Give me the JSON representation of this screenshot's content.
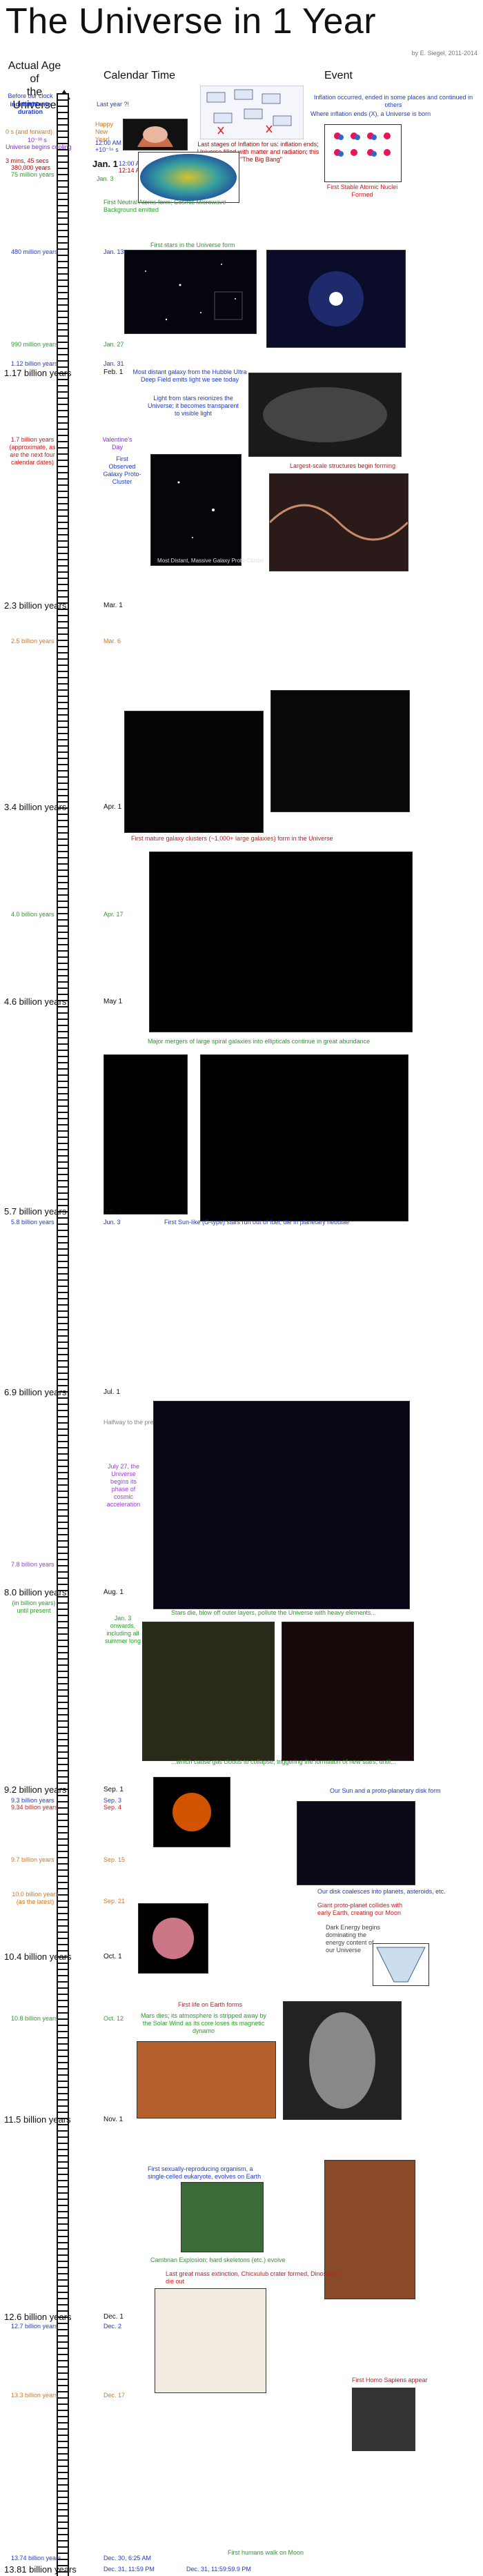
{
  "title": "The Universe in 1 Year",
  "credit": "by E. Siegel, 2011-2014",
  "headers": {
    "age": "Actual Age of\nthe Universe",
    "calendar": "Calendar Time",
    "event": "Event"
  },
  "intro": {
    "before": "Before our clock starts:",
    "indeterminate": "indeterminate",
    "duration": "duration",
    "last_year": "Last year ?!",
    "zero": "0 s (and forward)",
    "tenpow": "10⁻³³ s",
    "cooling": "Universe begins cooling",
    "three_min": "3 mins, 45 secs",
    "three_min_yr": "380,000 years",
    "yr75": "75 million years",
    "happy": "Happy New Year!",
    "twelve": "12:00 AM",
    "twelve2": "+10⁻¹⁶ s",
    "jan1": "Jan. 1",
    "jan1b": "12:00 AM + 16 ns",
    "jan1c": "12:14 AM",
    "jan3": "Jan. 3",
    "inflation_ends": "Inflation occurred, ended in some places and continued in others",
    "where_inflation": "Where inflation ends (X), a Universe is born",
    "last_stages": "Last stages of Inflation for us: inflation ends; Universe filled with matter and radiation; this is \"The Big Bang\"",
    "first_stable": "First Stable Atomic Nuclei Formed",
    "neutral_atoms": "First Neutral Atoms form; Cosmic Microwave Background emitted"
  },
  "rows": [
    {
      "age": "480 million years",
      "cal": "Jan. 13",
      "event": "First stars in the Universe form"
    },
    {
      "age": "990 million years",
      "cal": "Jan. 27"
    },
    {
      "age": "1.12 billion years",
      "cal": "Jan. 31"
    },
    {
      "age": "1.17 billion years",
      "cal": "Feb. 1",
      "event": "Most distant galaxy from the Hubble Ultra Deep Field emits light we see today"
    },
    {
      "event2": "Light from stars reionizes the Universe; it becomes transparent to visible light"
    },
    {
      "age": "1.7 billion years (approximate, as are the next four calendar dates)",
      "cal": "Valentine's Day",
      "event": "First Observed Galaxy Proto-Cluster"
    },
    {
      "event": "Largest-scale structures begin forming"
    },
    {
      "age": "2.3 billion years",
      "cal": "Mar. 1"
    },
    {
      "age": "2.5 billion years",
      "cal": "Mar. 6"
    },
    {
      "age": "3.4 billion years",
      "cal": "Apr. 1"
    },
    {
      "event": "First mature galaxy clusters (~1,000+ large galaxies) form in the Universe"
    },
    {
      "age": "4.0 billion years",
      "cal": "Apr. 17"
    },
    {
      "age": "4.6 billion years",
      "cal": "May 1"
    },
    {
      "event": "Major mergers of large spiral galaxies into ellipticals continue in great abundance"
    },
    {
      "age": "5.7 billion years",
      "cal": "Jun. 1"
    },
    {
      "age": "5.8 billion years",
      "cal": "Jun. 3",
      "event": "First Sun-like (G-type) stars run out of fuel; die in planetary nebulae"
    },
    {
      "age": "6.9 billion years",
      "cal": "Jul. 1",
      "note": "Halfway to the present day"
    },
    {
      "age": "7.8 billion years",
      "cal": "July 27, the Universe begins its phase of cosmic acceleration"
    },
    {
      "age": "8.0 billion years",
      "cal": "Aug. 1",
      "event": "Stars die, blow off outer layers, pollute the Universe with heavy elements..."
    },
    {
      "age": "(in billion years) until present",
      "cal": "Jan. 3 onwards, including all summer long"
    },
    {
      "event": "...which cause gas clouds to collapse, triggering the formation of new stars, until..."
    },
    {
      "age": "9.2 billion years",
      "cal": "Sep. 1",
      "event": "Our Sun and a proto-planetary disk form"
    },
    {
      "age": "9.3 billion years",
      "cal": "Sep. 3"
    },
    {
      "age": "9.34 billion years",
      "cal": "Sep. 4"
    },
    {
      "age": "9.7 billion years",
      "cal": "Sep. 15"
    },
    {
      "event": "Our disk coalesces into planets, asteroids, etc."
    },
    {
      "age": "10.0 billion years (as the latest)",
      "cal": "Sep. 21",
      "event": "Giant proto-planet collides with early Earth, creating our Moon"
    },
    {
      "event": "Dark Energy begins dominating the energy content of our Universe"
    },
    {
      "age": "10.4 billion years",
      "cal": "Oct. 1"
    },
    {
      "event": "First life on Earth forms"
    },
    {
      "age": "10.8 billion years",
      "cal": "Oct. 12",
      "event": "Mars dies; its atmosphere is stripped away by the Solar Wind as its core loses its magnetic dynamo"
    },
    {
      "age": "11.5 billion years",
      "cal": "Nov. 1"
    },
    {
      "event": "First sexually-reproducing organism, a single-celled eukaryote, evolves on Earth"
    },
    {
      "event": "Cambrian Explosion; hard skeletons (etc.) evolve"
    },
    {
      "age": "12.6 billion years",
      "cal": "Dec. 1"
    },
    {
      "age": "12.7 billion years",
      "cal": "Dec. 2",
      "event": "Last great mass extinction, Chicxulub crater formed, Dinosaurs die out"
    },
    {
      "event": "First Homo Sapiens appear"
    },
    {
      "age": "13.3 billion years",
      "cal": "Dec. 17"
    },
    {
      "age": "13.74 billion years",
      "cal": "Dec. 30, 6:25 AM",
      "event": "First humans walk on Moon"
    },
    {
      "age": "13.81 billion years",
      "cal": "Dec. 31, 11:59 PM",
      "cal2": "Dec. 31, 11:59:59.9 PM"
    }
  ],
  "figures": {
    "hubble_udf_caption": "Hubble Ultra Deep Field (HUDF)",
    "proto_cluster_caption": "Most Distant, Massive Galaxy Proto-Cluster",
    "chart_label_A": "A",
    "chart_label_B": "B"
  }
}
